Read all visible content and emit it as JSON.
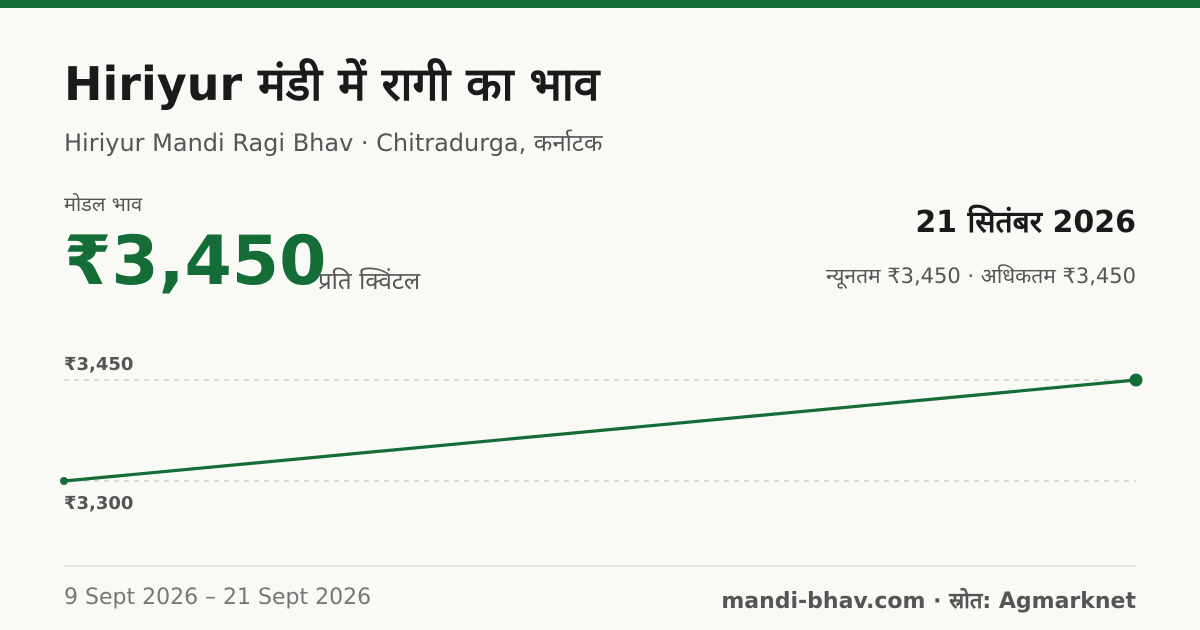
{
  "header": {
    "title": "Hiriyur मंडी में रागी का भाव",
    "subtitle": "Hiriyur Mandi Ragi Bhav · Chitradurga, कर्नाटक"
  },
  "price": {
    "label": "मोडल भाव",
    "value": "₹3,450",
    "unit": "प्रति क्विंटल"
  },
  "summary": {
    "date": "21 सितंबर 2026",
    "range": "न्यूनतम ₹3,450 · अधिकतम ₹3,450"
  },
  "chart_data": {
    "type": "line",
    "values": [
      3300,
      3450
    ],
    "color": "#146c37",
    "ylim": [
      3300,
      3450
    ],
    "yticks": [
      {
        "value": 3450,
        "label": "₹3,450"
      },
      {
        "value": 3300,
        "label": "₹3,300"
      }
    ],
    "grid": true
  },
  "footer": {
    "period": "9 Sept 2026 – 21 Sept 2026",
    "source": "mandi-bhav.com · स्रोत: Agmarknet"
  }
}
